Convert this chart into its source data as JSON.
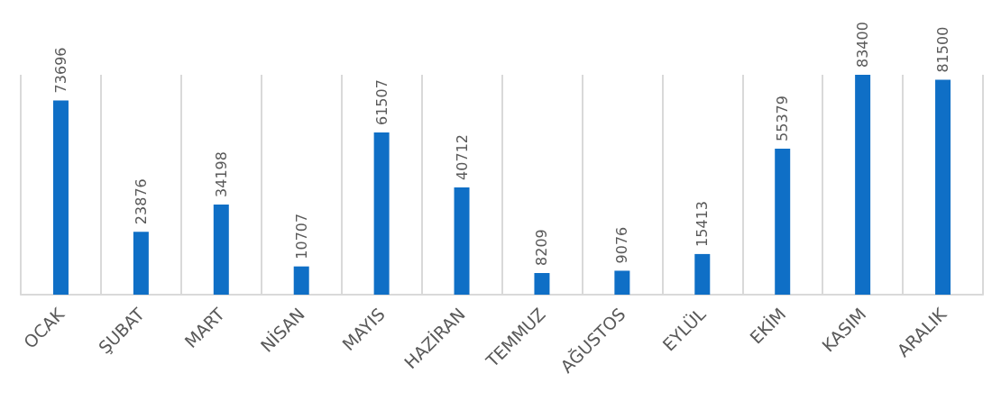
{
  "chart_data": {
    "type": "bar",
    "categories": [
      "OCAK",
      "ŞUBAT",
      "MART",
      "NİSAN",
      "MAYIS",
      "HAZİRAN",
      "TEMMUZ",
      "AĞUSTOS",
      "EYLÜL",
      "EKİM",
      "KASIM",
      "ARALIK"
    ],
    "values": [
      73696,
      23876,
      34198,
      10707,
      61507,
      40712,
      8209,
      9076,
      15413,
      55379,
      83400,
      81500
    ],
    "color": "#0f6fc6",
    "data_labels": true,
    "grid": "x"
  }
}
